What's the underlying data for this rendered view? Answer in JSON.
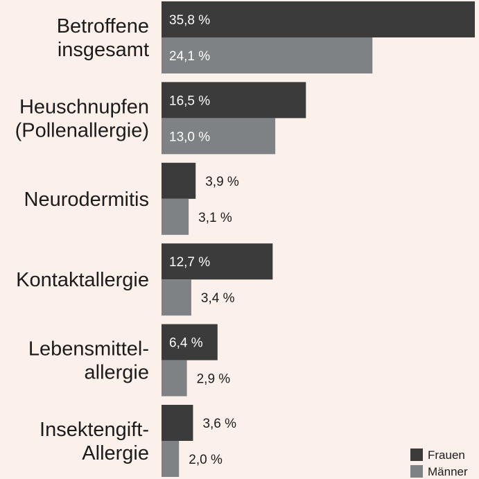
{
  "chart_data": {
    "type": "bar",
    "orientation": "horizontal",
    "categories": [
      [
        "Betroffene",
        "insgesamt"
      ],
      [
        "Heuschnupfen",
        "(Pollenallergie)"
      ],
      [
        "Neurodermitis"
      ],
      [
        "Kontaktallergie"
      ],
      [
        "Lebensmittel-",
        "allergie"
      ],
      [
        "Insektengift-",
        "Allergie"
      ]
    ],
    "series": [
      {
        "name": "Frauen",
        "color": "#3b3b3b",
        "values": [
          35.8,
          16.5,
          3.9,
          12.7,
          6.4,
          3.6
        ],
        "labels": [
          "35,8 %",
          "16,5 %",
          "3,9 %",
          "12,7 %",
          "6,4 %",
          "3,6 %"
        ]
      },
      {
        "name": "Männer",
        "color": "#7e8285",
        "values": [
          24.1,
          13.0,
          3.1,
          3.4,
          2.9,
          2.0
        ],
        "labels": [
          "24,1 %",
          "13,0 %",
          "3,1 %",
          "3,4 %",
          "2,9 %",
          "2,0 %"
        ]
      }
    ],
    "xlim": [
      0,
      35.8
    ],
    "grid": false,
    "legend_position": "bottom-right",
    "background": "#fcf1ea"
  }
}
